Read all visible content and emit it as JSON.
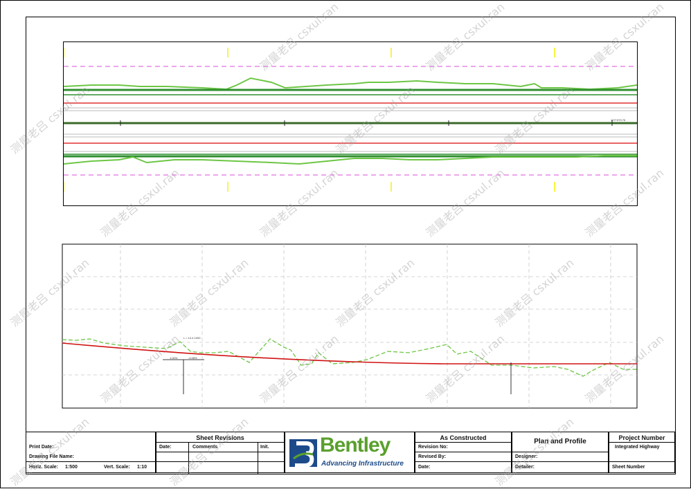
{
  "title_block": {
    "print_date_label": "Print Date:",
    "drawing_file_label": "Drawing File Name:",
    "horiz_scale_label": "Horiz. Scale:",
    "horiz_scale_value": "1:500",
    "vert_scale_label": "Vert. Scale:",
    "vert_scale_value": "1:10",
    "sheet_revisions": "Sheet Revisions",
    "date_col": "Date:",
    "comments_col": "Comments",
    "init_col": "Init.",
    "logo_name": "Bentley",
    "logo_tagline": "Advancing Infrastructure",
    "as_constructed": "As Constructed",
    "revision_no": "Revision No:",
    "revised_by": "Revised By:",
    "date": "Date:",
    "plan_and_profile": "Plan and Profile",
    "designer": "Designer:",
    "detailer": "Detailer:",
    "project_number": "Project Number",
    "project_name": "Integrated Highway",
    "sheet_number": "Sheet Number"
  },
  "profile": {
    "grade_annotation": "L = 14.4 1000",
    "pvi_label": "1.00%",
    "pvi_label_2": "-0.08%"
  },
  "watermark": "测量老吕 csxul.ran",
  "colors": {
    "existing_ground": "#6cc644",
    "centerline": "#2f7a2f",
    "edge_red": "#e03030",
    "rom_pink": "#e070e0",
    "proposed_profile": "#d01010",
    "grid": "#c8c8c8"
  }
}
